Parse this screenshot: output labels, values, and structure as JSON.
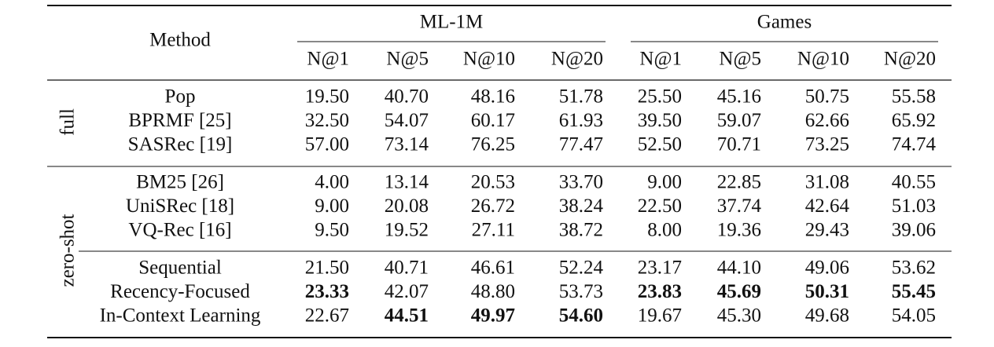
{
  "table": {
    "method_header": "Method",
    "spans": [
      {
        "label": "ML-1M",
        "columns": [
          "N@1",
          "N@5",
          "N@10",
          "N@20"
        ]
      },
      {
        "label": "Games",
        "columns": [
          "N@1",
          "N@5",
          "N@10",
          "N@20"
        ]
      }
    ],
    "groups": [
      {
        "label": "full",
        "sections": [
          [
            {
              "method": "Pop",
              "values": [
                "19.50",
                "40.70",
                "48.16",
                "51.78",
                "25.50",
                "45.16",
                "50.75",
                "55.58"
              ],
              "bold": []
            },
            {
              "method": "BPRMF [25]",
              "values": [
                "32.50",
                "54.07",
                "60.17",
                "61.93",
                "39.50",
                "59.07",
                "62.66",
                "65.92"
              ],
              "bold": []
            },
            {
              "method": "SASRec [19]",
              "values": [
                "57.00",
                "73.14",
                "76.25",
                "77.47",
                "52.50",
                "70.71",
                "73.25",
                "74.74"
              ],
              "bold": []
            }
          ]
        ]
      },
      {
        "label": "zero-shot",
        "sections": [
          [
            {
              "method": "BM25 [26]",
              "values": [
                "4.00",
                "13.14",
                "20.53",
                "33.70",
                "9.00",
                "22.85",
                "31.08",
                "40.55"
              ],
              "bold": []
            },
            {
              "method": "UniSRec [18]",
              "values": [
                "9.00",
                "20.08",
                "26.72",
                "38.24",
                "22.50",
                "37.74",
                "42.64",
                "51.03"
              ],
              "bold": []
            },
            {
              "method": "VQ-Rec [16]",
              "values": [
                "9.50",
                "19.52",
                "27.11",
                "38.72",
                "8.00",
                "19.36",
                "29.43",
                "39.06"
              ],
              "bold": []
            }
          ],
          [
            {
              "method": "Sequential",
              "values": [
                "21.50",
                "40.71",
                "46.61",
                "52.24",
                "23.17",
                "44.10",
                "49.06",
                "53.62"
              ],
              "bold": []
            },
            {
              "method": "Recency-Focused",
              "values": [
                "23.33",
                "42.07",
                "48.80",
                "53.73",
                "23.83",
                "45.69",
                "50.31",
                "55.45"
              ],
              "bold": [
                0,
                4,
                5,
                6,
                7
              ]
            },
            {
              "method": "In-Context Learning",
              "values": [
                "22.67",
                "44.51",
                "49.97",
                "54.60",
                "19.67",
                "45.30",
                "49.68",
                "54.05"
              ],
              "bold": [
                1,
                2,
                3
              ]
            }
          ]
        ]
      }
    ]
  }
}
